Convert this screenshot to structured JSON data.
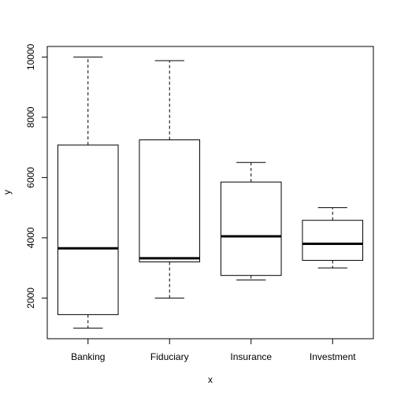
{
  "chart_data": {
    "type": "box",
    "title": "",
    "xlabel": "x",
    "ylabel": "y",
    "categories": [
      "Banking",
      "Fiduciary",
      "Insurance",
      "Investment"
    ],
    "boxes": [
      {
        "name": "Banking",
        "min": 1000,
        "q1": 1450,
        "median": 3650,
        "q3": 7080,
        "max": 10000
      },
      {
        "name": "Fiduciary",
        "min": 2000,
        "q1": 3200,
        "median": 3320,
        "q3": 7250,
        "max": 9880
      },
      {
        "name": "Insurance",
        "min": 2600,
        "q1": 2750,
        "median": 4050,
        "q3": 5850,
        "max": 6500
      },
      {
        "name": "Investment",
        "min": 3000,
        "q1": 3250,
        "median": 3800,
        "q3": 4580,
        "max": 5000
      }
    ],
    "yticks": [
      "2000",
      "4000",
      "6000",
      "8000",
      "10000"
    ],
    "ylim": [
      650,
      10350
    ],
    "grid": false,
    "legend": "none"
  }
}
